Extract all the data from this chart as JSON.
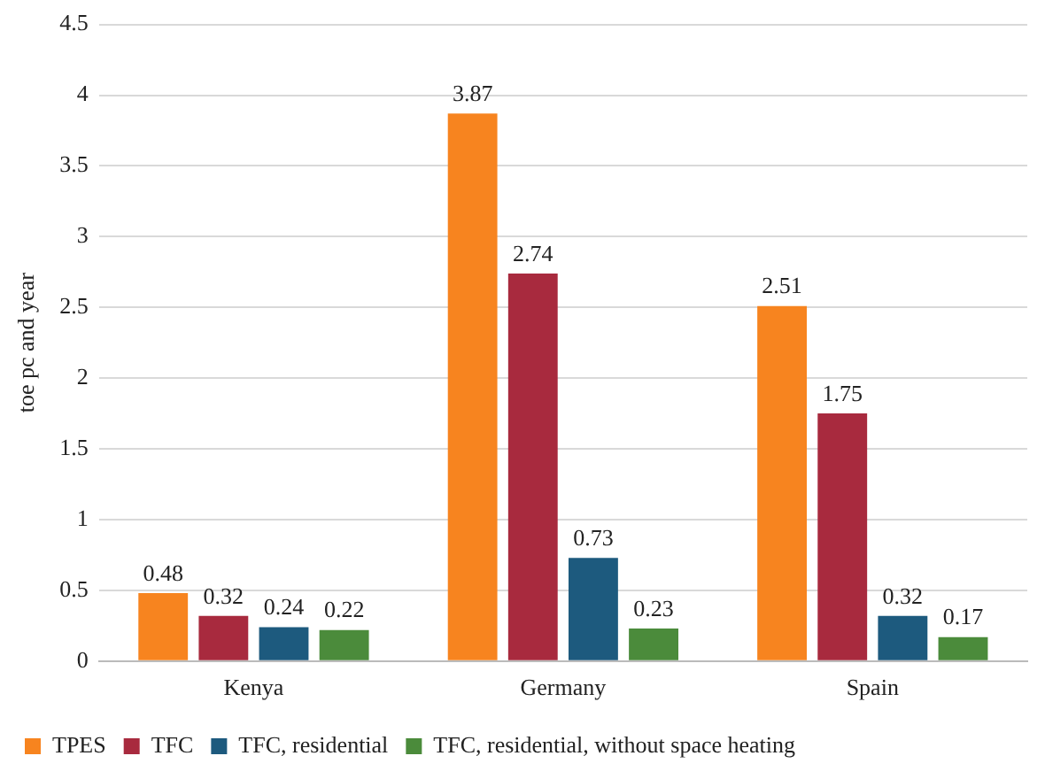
{
  "chart_data": {
    "type": "bar",
    "ylabel": "toe pc and year",
    "categories": [
      "Kenya",
      "Germany",
      "Spain"
    ],
    "series": [
      {
        "name": "TPES",
        "color": "#f7841f",
        "values": [
          0.48,
          3.87,
          2.51
        ]
      },
      {
        "name": "TFC",
        "color": "#a82a3e",
        "values": [
          0.32,
          2.74,
          1.75
        ]
      },
      {
        "name": "TFC, residential",
        "color": "#1d5a7e",
        "values": [
          0.24,
          0.73,
          0.32
        ]
      },
      {
        "name": "TFC, residential, without space heating",
        "color": "#4b8b3b",
        "values": [
          0.22,
          0.23,
          0.17
        ]
      }
    ],
    "ylim": [
      0,
      4.5
    ],
    "yticks": [
      0,
      0.5,
      1,
      1.5,
      2,
      2.5,
      3,
      3.5,
      4,
      4.5
    ],
    "grid": "y",
    "legend": "bottom",
    "data_labels": true
  }
}
